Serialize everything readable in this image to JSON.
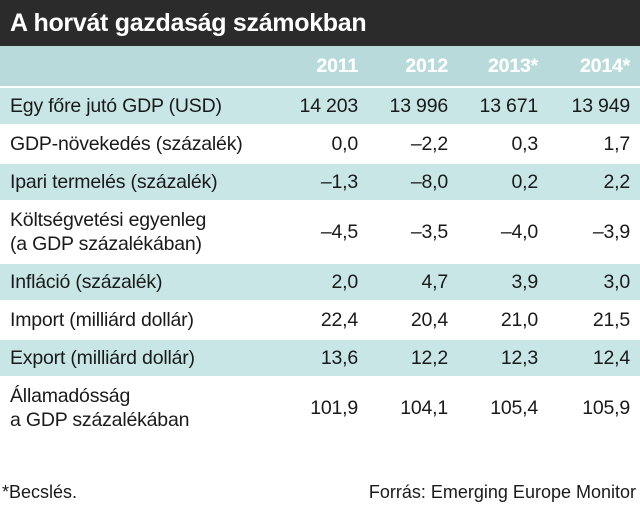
{
  "title": "A horvát gazdaság számokban",
  "table": {
    "columns": [
      "2011",
      "2012",
      "2013*",
      "2014*"
    ],
    "rows": [
      {
        "label": "Egy főre jutó GDP (USD)",
        "values": [
          "14 203",
          "13 996",
          "13 671",
          "13 949"
        ]
      },
      {
        "label": "GDP-növekedés (százalék)",
        "values": [
          "0,0",
          "–2,2",
          "0,3",
          "1,7"
        ]
      },
      {
        "label": "Ipari termelés (százalék)",
        "values": [
          "–1,3",
          "–8,0",
          "0,2",
          "2,2"
        ]
      },
      {
        "label_line1": "Költségvetési egyenleg",
        "label_line2": "(a GDP százalékában)",
        "values": [
          "–4,5",
          "–3,5",
          "–4,0",
          "–3,9"
        ]
      },
      {
        "label": "Infláció (százalék)",
        "values": [
          "2,0",
          "4,7",
          "3,9",
          "3,0"
        ]
      },
      {
        "label": "Import (milliárd dollár)",
        "values": [
          "22,4",
          "20,4",
          "21,0",
          "21,5"
        ]
      },
      {
        "label": "Export (milliárd dollár)",
        "values": [
          "13,6",
          "12,2",
          "12,3",
          "12,4"
        ]
      },
      {
        "label_line1": "Államadósság",
        "label_line2": "a GDP százalékában",
        "values": [
          "101,9",
          "104,1",
          "105,4",
          "105,9"
        ]
      }
    ]
  },
  "footnote": "*Becslés.",
  "source": "Forrás: Emerging Europe Monitor",
  "colors": {
    "title_background": "#2b2b2b",
    "header_background": "#b8dada",
    "shaded_row": "#c8e6e6"
  }
}
